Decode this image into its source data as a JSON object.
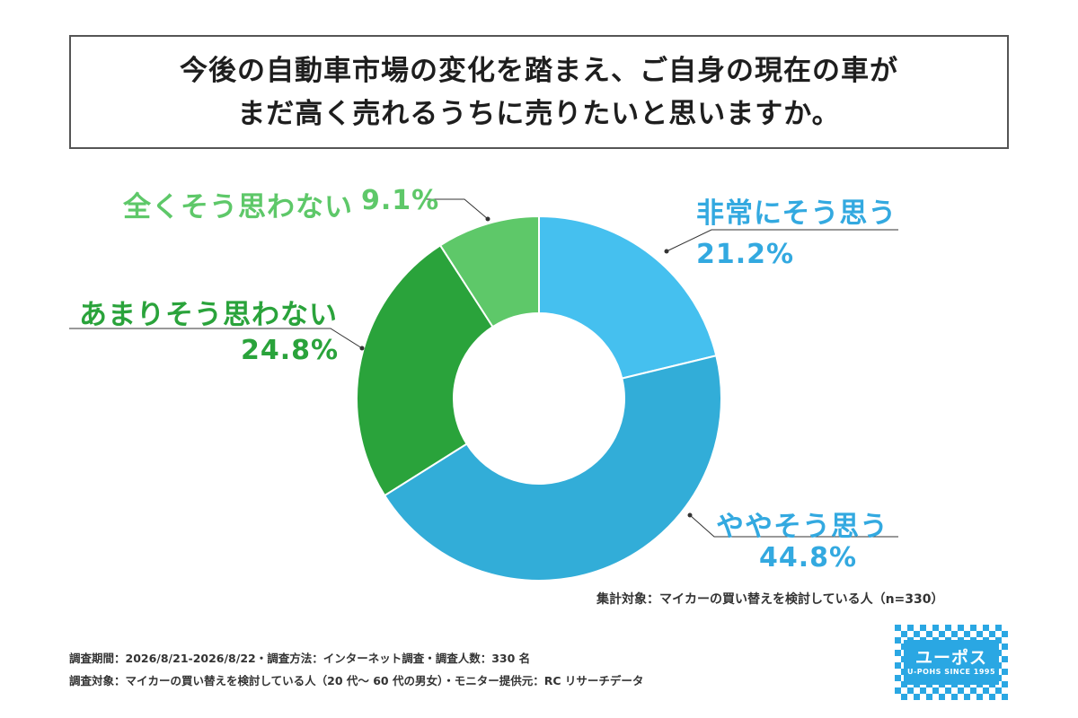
{
  "title": {
    "line1": "今後の自動車市場の変化を踏まえ、ご自身の現在の車が",
    "line2": "まだ高く売れるうちに売りたいと思いますか。"
  },
  "chart_data": {
    "type": "pie",
    "variant": "donut",
    "start_angle_deg": 0,
    "direction": "clockwise",
    "slices": [
      {
        "label": "非常にそう思う",
        "value": 21.2,
        "display": "21.2%",
        "color": "#45c0ef",
        "label_color": "#33a9e0"
      },
      {
        "label": "ややそう思う",
        "value": 44.8,
        "display": "44.8%",
        "color": "#32add8",
        "label_color": "#33a9e0"
      },
      {
        "label": "あまりそう思わない",
        "value": 24.8,
        "display": "24.8%",
        "color": "#2aa33b",
        "label_color": "#2aa33b"
      },
      {
        "label": "全くそう思わない",
        "value": 9.1,
        "display": "9.1%",
        "color": "#5ec869",
        "label_color": "#5ec869"
      }
    ]
  },
  "note": "集計対象：マイカーの買い替えを検討している人（n=330）",
  "footer": {
    "line1": "調査期間：2026/8/21-2026/8/22・調査方法：インターネット調査・調査人数：330 名",
    "line2": "調査対象：マイカーの買い替えを検討している人（20 代〜 60 代の男女）・モニター提供元：RC リサーチデータ"
  },
  "logo": {
    "main": "ユーポス",
    "sub": "U-POHS SINCE 1995"
  }
}
